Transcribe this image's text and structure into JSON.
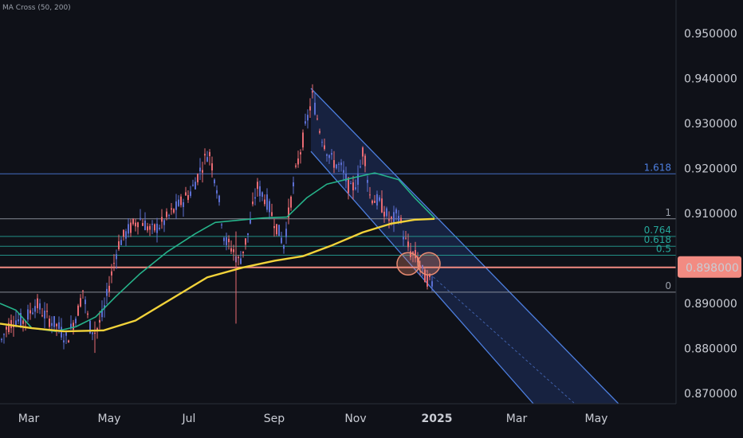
{
  "indicator_label": "MA Cross (50, 200)",
  "chart_data": {
    "type": "candlestick",
    "ylim": [
      0.8655,
      0.955
    ],
    "yticks": [
      {
        "value": 0.95,
        "label": "0.950000"
      },
      {
        "value": 0.94,
        "label": "0.940000"
      },
      {
        "value": 0.93,
        "label": "0.930000"
      },
      {
        "value": 0.92,
        "label": "0.920000"
      },
      {
        "value": 0.91,
        "label": "0.910000"
      },
      {
        "value": 0.89,
        "label": "0.890000"
      },
      {
        "value": 0.88,
        "label": "0.880000"
      },
      {
        "value": 0.87,
        "label": "0.870000"
      }
    ],
    "xticks": [
      {
        "label": "Mar",
        "bold": false
      },
      {
        "label": "May",
        "bold": false
      },
      {
        "label": "Jul",
        "bold": false
      },
      {
        "label": "Sep",
        "bold": false
      },
      {
        "label": "Nov",
        "bold": false
      },
      {
        "label": "2025",
        "bold": true
      },
      {
        "label": "Mar",
        "bold": false
      },
      {
        "label": "May",
        "bold": false
      }
    ],
    "price_marker": {
      "value": 0.898,
      "label": "0.898000",
      "color": "#f28b82"
    },
    "fib_levels": [
      {
        "level": "1.618",
        "value": 0.9188,
        "color": "#4d7fe0"
      },
      {
        "level": "1",
        "value": 0.9088,
        "color": "#9aa0aa"
      },
      {
        "level": "0.764",
        "value": 0.9049,
        "color": "#26a69a"
      },
      {
        "level": "0.618",
        "value": 0.9027,
        "color": "#26a69a"
      },
      {
        "level": "0.5",
        "value": 0.9007,
        "color": "#26a69a"
      },
      {
        "level": "0",
        "value": 0.8925,
        "color": "#9aa0aa"
      }
    ],
    "series": [
      {
        "name": "MA 50",
        "color": "#26b38a",
        "points": [
          [
            0,
            0.89
          ],
          [
            20,
            0.8885
          ],
          [
            40,
            0.8845
          ],
          [
            70,
            0.8838
          ],
          [
            95,
            0.8848
          ],
          [
            120,
            0.887
          ],
          [
            145,
            0.8915
          ],
          [
            175,
            0.8965
          ],
          [
            210,
            0.9015
          ],
          [
            245,
            0.9055
          ],
          [
            270,
            0.908
          ],
          [
            300,
            0.9085
          ],
          [
            330,
            0.909
          ],
          [
            360,
            0.9092
          ],
          [
            385,
            0.9135
          ],
          [
            410,
            0.9165
          ],
          [
            440,
            0.9178
          ],
          [
            470,
            0.919
          ],
          [
            500,
            0.9175
          ],
          [
            520,
            0.9135
          ],
          [
            545,
            0.909
          ]
        ]
      },
      {
        "name": "MA 200",
        "color": "#f2d33a",
        "points": [
          [
            0,
            0.8855
          ],
          [
            40,
            0.8845
          ],
          [
            80,
            0.8838
          ],
          [
            130,
            0.884
          ],
          [
            170,
            0.8862
          ],
          [
            215,
            0.891
          ],
          [
            260,
            0.8958
          ],
          [
            305,
            0.898
          ],
          [
            345,
            0.8995
          ],
          [
            380,
            0.9005
          ],
          [
            415,
            0.9028
          ],
          [
            455,
            0.9058
          ],
          [
            490,
            0.9077
          ],
          [
            520,
            0.9086
          ],
          [
            545,
            0.9088
          ]
        ]
      }
    ],
    "channel": {
      "color": "#4d7fe0",
      "upper": [
        [
          390,
          0.9378
        ],
        [
          788,
          0.8655
        ]
      ],
      "lower": [
        [
          390,
          0.9238
        ],
        [
          680,
          0.8655
        ]
      ],
      "mid_dashed": [
        [
          530,
          0.898
        ],
        [
          735,
          0.8655
        ]
      ]
    },
    "highlight_circles": [
      {
        "x": 512,
        "value": 0.8988
      },
      {
        "x": 538,
        "value": 0.8988
      }
    ],
    "candles_start": "Feb 2024",
    "candles_end": "Dec 2024"
  }
}
